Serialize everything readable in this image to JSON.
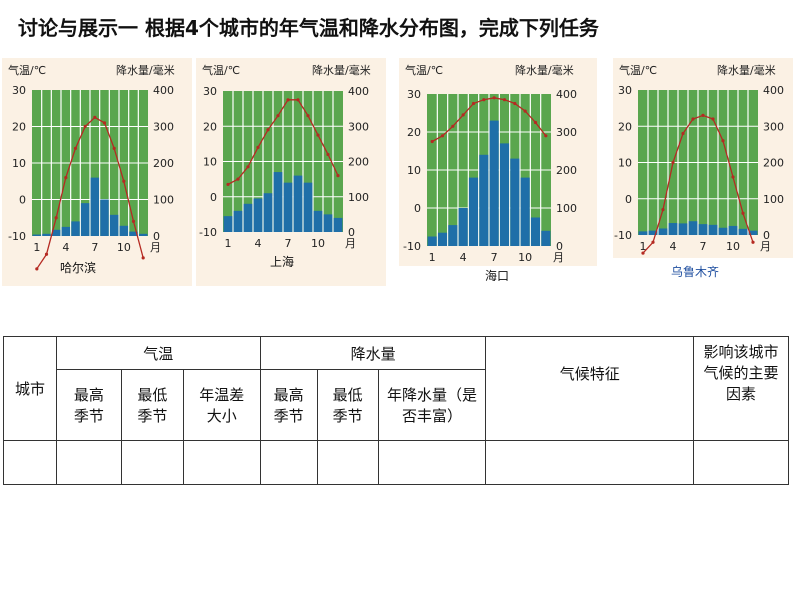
{
  "title": "讨论与展示一  根据4个城市的年气温和降水分布图，完成下列任务",
  "chart_data": [
    {
      "type": "bar",
      "city": "哈尔滨",
      "ylabel_left": "气温/℃",
      "ylabel_right": "降水量/毫米",
      "temp_ticks": [
        "30",
        "20",
        "10",
        "0",
        "-10"
      ],
      "precip_ticks": [
        "400",
        "300",
        "200",
        "100",
        "0"
      ],
      "x_ticks": [
        "1",
        "4",
        "7",
        "10",
        "月"
      ],
      "ylim_temp": [
        -10,
        30
      ],
      "ylim_precip": [
        0,
        400
      ],
      "months": [
        1,
        2,
        3,
        4,
        5,
        6,
        7,
        8,
        9,
        10,
        11,
        12
      ],
      "temperature": [
        -19,
        -15,
        -5,
        6,
        14,
        20,
        22.5,
        21,
        14,
        5,
        -6,
        -16
      ],
      "precipitation": [
        4,
        6,
        17,
        25,
        40,
        90,
        160,
        100,
        58,
        28,
        12,
        6
      ]
    },
    {
      "type": "bar",
      "city": "上海",
      "ylabel_left": "气温/℃",
      "ylabel_right": "降水量/毫米",
      "temp_ticks": [
        "30",
        "20",
        "10",
        "0",
        "-10"
      ],
      "precip_ticks": [
        "400",
        "300",
        "200",
        "100",
        "0"
      ],
      "x_ticks": [
        "1",
        "4",
        "7",
        "10",
        "月"
      ],
      "ylim_temp": [
        -10,
        30
      ],
      "ylim_precip": [
        0,
        400
      ],
      "months": [
        1,
        2,
        3,
        4,
        5,
        6,
        7,
        8,
        9,
        10,
        11,
        12
      ],
      "temperature": [
        3.5,
        5,
        8.5,
        14,
        19,
        23,
        27.5,
        27.5,
        23,
        17.5,
        12,
        6
      ],
      "precipitation": [
        45,
        60,
        80,
        95,
        110,
        170,
        140,
        160,
        140,
        60,
        50,
        40
      ]
    },
    {
      "type": "bar",
      "city": "海口",
      "ylabel_left": "气温/℃",
      "ylabel_right": "降水量/毫米",
      "temp_ticks": [
        "30",
        "20",
        "10",
        "0",
        "-10"
      ],
      "precip_ticks": [
        "400",
        "300",
        "200",
        "100",
        "0"
      ],
      "x_ticks": [
        "1",
        "4",
        "7",
        "10",
        "月"
      ],
      "ylim_temp": [
        -10,
        30
      ],
      "ylim_precip": [
        0,
        400
      ],
      "months": [
        1,
        2,
        3,
        4,
        5,
        6,
        7,
        8,
        9,
        10,
        11,
        12
      ],
      "temperature": [
        17.5,
        19,
        21.5,
        24.5,
        27.5,
        28.5,
        29,
        28.5,
        27.5,
        25.5,
        22.5,
        19
      ],
      "precipitation": [
        25,
        35,
        55,
        100,
        180,
        240,
        330,
        270,
        230,
        180,
        75,
        40
      ]
    },
    {
      "type": "bar",
      "city": "乌鲁木齐",
      "ylabel_left": "气温/℃",
      "ylabel_right": "降水量/毫米",
      "temp_ticks": [
        "30",
        "20",
        "10",
        "0",
        "-10"
      ],
      "precip_ticks": [
        "400",
        "300",
        "200",
        "100",
        "0"
      ],
      "x_ticks": [
        "1",
        "4",
        "7",
        "10",
        "月"
      ],
      "ylim_temp": [
        -10,
        30
      ],
      "ylim_precip": [
        0,
        400
      ],
      "months": [
        1,
        2,
        3,
        4,
        5,
        6,
        7,
        8,
        9,
        10,
        11,
        12
      ],
      "temperature": [
        -15,
        -12,
        -3,
        10,
        18,
        22,
        23,
        22,
        16,
        6,
        -4,
        -12
      ],
      "precipitation": [
        10,
        12,
        18,
        33,
        32,
        38,
        30,
        28,
        20,
        25,
        17,
        12
      ]
    }
  ],
  "table": {
    "col_city": "城市",
    "group_temp": "气温",
    "group_precip": "降水量",
    "col_features": "气候特征",
    "col_factors": "影响该城市气候的主要因素",
    "sub_temp_high": "最高季节",
    "sub_temp_low": "最低季节",
    "sub_temp_range": "年温差大小",
    "sub_precip_high": "最高季节",
    "sub_precip_low": "最低季节",
    "sub_precip_total": "年降水量（是否丰富）"
  }
}
